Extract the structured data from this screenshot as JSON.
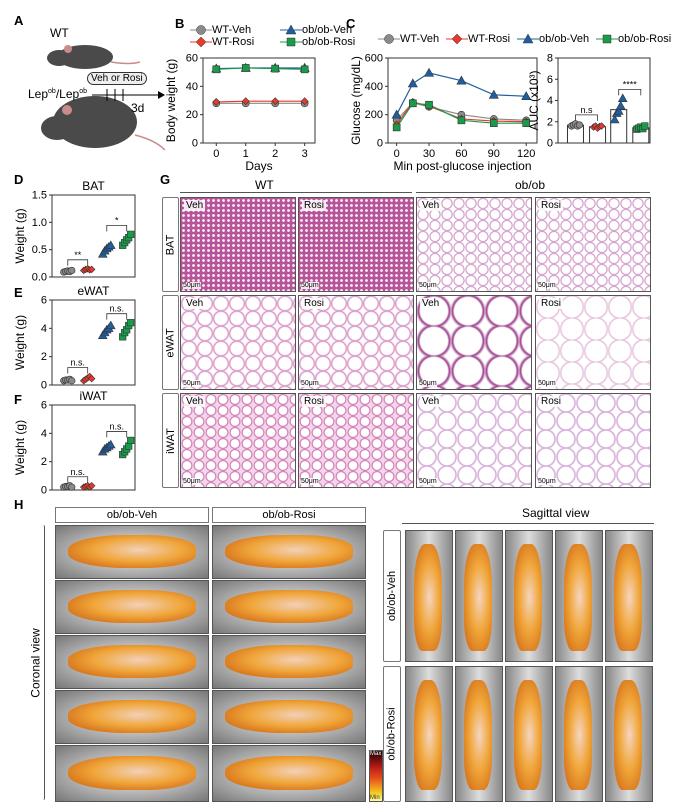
{
  "panels": {
    "A": "A",
    "B": "B",
    "C": "C",
    "D": "D",
    "E": "E",
    "F": "F",
    "G": "G",
    "H": "H"
  },
  "schematic": {
    "wt": "WT",
    "lep": "Lep",
    "ob_sup": "ob",
    "slash": "/",
    "treatment": "Veh or Rosi",
    "duration": "3d"
  },
  "series": [
    {
      "name": "WT-Veh",
      "color": "#8a8a8a",
      "marker": "circle"
    },
    {
      "name": "WT-Rosi",
      "color": "#e8392b",
      "marker": "diamond"
    },
    {
      "name": "ob/ob-Veh",
      "color": "#1f5fa0",
      "marker": "triangle"
    },
    {
      "name": "ob/ob-Rosi",
      "color": "#1a9a4a",
      "marker": "square"
    }
  ],
  "chart_data": [
    {
      "id": "B",
      "type": "line",
      "xlabel": "Days",
      "ylabel": "Body weight (g)",
      "x": [
        0,
        1,
        2,
        3
      ],
      "xticks": [
        0,
        1,
        2,
        3
      ],
      "ylim": [
        0,
        60
      ],
      "yticks": [
        0,
        20,
        40,
        60
      ],
      "series": [
        {
          "name": "WT-Veh",
          "values": [
            28,
            28,
            28,
            28
          ]
        },
        {
          "name": "WT-Rosi",
          "values": [
            29,
            29.5,
            29.5,
            29.5
          ]
        },
        {
          "name": "ob/ob-Veh",
          "values": [
            52.5,
            53,
            53,
            53
          ]
        },
        {
          "name": "ob/ob-Rosi",
          "values": [
            52,
            53,
            52.5,
            52
          ]
        }
      ]
    },
    {
      "id": "C1",
      "type": "line",
      "xlabel": "Min post-glucose injection",
      "ylabel": "Glucose (mg/dL)",
      "x": [
        0,
        15,
        30,
        60,
        90,
        120
      ],
      "xticks": [
        0,
        30,
        60,
        90,
        120
      ],
      "ylim": [
        0,
        600
      ],
      "yticks": [
        0,
        200,
        400,
        600
      ],
      "series": [
        {
          "name": "WT-Veh",
          "values": [
            160,
            285,
            255,
            200,
            170,
            160
          ]
        },
        {
          "name": "WT-Rosi",
          "values": [
            130,
            290,
            260,
            170,
            155,
            150
          ]
        },
        {
          "name": "ob/ob-Veh",
          "values": [
            200,
            420,
            495,
            440,
            340,
            330
          ]
        },
        {
          "name": "ob/ob-Rosi",
          "values": [
            110,
            280,
            270,
            160,
            140,
            140
          ]
        }
      ]
    },
    {
      "id": "C2",
      "type": "bar",
      "title": "",
      "ylabel": "AUC (x10³)",
      "ylim": [
        0,
        8
      ],
      "yticks": [
        0,
        2,
        4,
        6,
        8
      ],
      "bars": true,
      "groups": [
        [
          1.6,
          1.7,
          1.8,
          1.6,
          1.7
        ],
        [
          1.5,
          1.6,
          1.4,
          1.55,
          1.6
        ],
        [
          2.2,
          2.8,
          3.0,
          3.5,
          4.2
        ],
        [
          1.3,
          1.4,
          1.5,
          1.35,
          1.6
        ]
      ],
      "comparisons": [
        {
          "pair": [
            0,
            1
          ],
          "label": "n.s"
        },
        {
          "pair": [
            2,
            3
          ],
          "label": "****"
        }
      ]
    },
    {
      "id": "D",
      "type": "scatter",
      "title": "BAT",
      "ylabel": "Weight (g)",
      "ylim": [
        0,
        1.5
      ],
      "yticks": [
        "0.0",
        "0.5",
        "1.0",
        "1.5"
      ],
      "groups": [
        [
          0.09,
          0.1,
          0.11,
          0.1,
          0.12
        ],
        [
          0.12,
          0.14,
          0.15,
          0.13,
          0.14
        ],
        [
          0.42,
          0.48,
          0.52,
          0.55,
          0.58
        ],
        [
          0.58,
          0.63,
          0.68,
          0.72,
          0.78
        ]
      ],
      "comparisons": [
        {
          "pair": [
            0,
            1
          ],
          "label": "**"
        },
        {
          "pair": [
            2,
            3
          ],
          "label": "*"
        }
      ]
    },
    {
      "id": "E",
      "type": "scatter",
      "title": "eWAT",
      "ylabel": "Weight (g)",
      "ylim": [
        0,
        6
      ],
      "yticks": [
        0,
        2,
        4,
        6
      ],
      "groups": [
        [
          0.3,
          0.35,
          0.35,
          0.4,
          0.3
        ],
        [
          0.3,
          0.4,
          0.5,
          0.6,
          0.45
        ],
        [
          3.5,
          3.7,
          3.9,
          4.0,
          4.2
        ],
        [
          3.4,
          3.7,
          3.9,
          4.2,
          4.4
        ]
      ],
      "comparisons": [
        {
          "pair": [
            0,
            1
          ],
          "label": "n.s."
        },
        {
          "pair": [
            2,
            3
          ],
          "label": "n.s."
        }
      ]
    },
    {
      "id": "F",
      "type": "scatter",
      "title": "iWAT",
      "ylabel": "Weight (g)",
      "ylim": [
        0,
        6
      ],
      "yticks": [
        0,
        2,
        4,
        6
      ],
      "groups": [
        [
          0.2,
          0.25,
          0.25,
          0.3,
          0.2
        ],
        [
          0.2,
          0.25,
          0.3,
          0.2,
          0.3
        ],
        [
          2.7,
          2.9,
          3.0,
          3.1,
          3.2
        ],
        [
          2.5,
          2.7,
          2.9,
          3.1,
          3.5
        ]
      ],
      "comparisons": [
        {
          "pair": [
            0,
            1
          ],
          "label": "n.s."
        },
        {
          "pair": [
            2,
            3
          ],
          "label": "n.s."
        }
      ]
    }
  ],
  "histology": {
    "col_groups": [
      "WT",
      "ob/ob"
    ],
    "rows": [
      "BAT",
      "eWAT",
      "iWAT"
    ],
    "treatments": [
      "Veh",
      "Rosi",
      "Veh",
      "Rosi"
    ],
    "scale_bar": "50μm"
  },
  "imaging": {
    "headers": [
      "ob/ob-Veh",
      "ob/ob-Rosi"
    ],
    "coronal": "Coronal view",
    "sagittal": "Sagittal view",
    "sag_rows": [
      "ob/ob-Veh",
      "ob/ob-Rosi"
    ],
    "colorbar": {
      "max": "Max",
      "min": "Min"
    }
  }
}
